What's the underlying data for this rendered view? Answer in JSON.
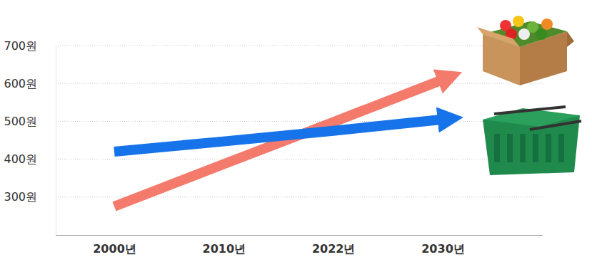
{
  "chart_data": {
    "type": "line",
    "categories": [
      "2000년",
      "2010년",
      "2022년",
      "2030년"
    ],
    "series": [
      {
        "color": "#f47a6c",
        "marker": "arrow",
        "values": [
          275,
          387,
          498,
          610
        ]
      },
      {
        "color": "#1673ea",
        "marker": "arrow",
        "values": [
          420,
          447,
          475,
          505
        ]
      }
    ],
    "ylim": [
      200,
      700
    ],
    "yticks": [
      {
        "value": 300,
        "label": "300원"
      },
      {
        "value": 400,
        "label": "400원"
      },
      {
        "value": 500,
        "label": "500원"
      },
      {
        "value": 600,
        "label": "600원"
      },
      {
        "value": 700,
        "label": "700원"
      }
    ],
    "grid": true
  }
}
